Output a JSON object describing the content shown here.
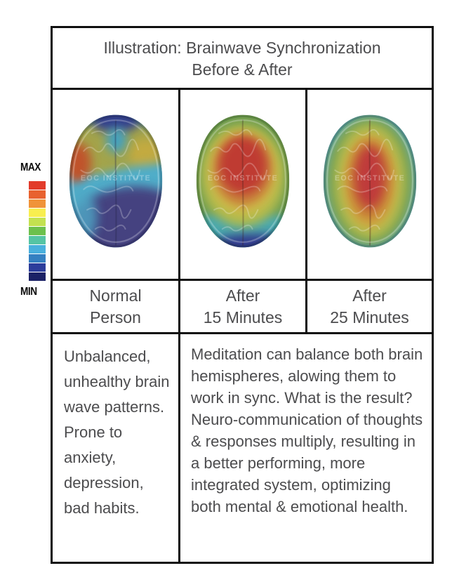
{
  "title": {
    "line1": "Illustration: Brainwave Synchronization",
    "line2": "Before & After"
  },
  "colorbar": {
    "max_label": "MAX",
    "min_label": "MIN",
    "colors": [
      "#e23b2b",
      "#e8622f",
      "#f09339",
      "#f8ee4f",
      "#c3e150",
      "#6cc04c",
      "#55c4a4",
      "#49b0dd",
      "#3480c1",
      "#2c3d9b",
      "#1b2166"
    ]
  },
  "columns": [
    {
      "label_line1": "Normal",
      "label_line2": "Person",
      "brain_alt": "scattered unsynchronized heatmap: blue rear, teal band, olive and orange patches at front"
    },
    {
      "label_line1": "After",
      "label_line2": "15 Minutes",
      "brain_alt": "concentric heatmap: red core in front half, orange-yellow-green rings, blue rear edge"
    },
    {
      "label_line1": "After",
      "label_line2": "25 Minutes",
      "brain_alt": "concentric heatmap: red midline core, orange-yellow-green rings, cyan side edges"
    }
  ],
  "descriptions": {
    "left": "Unbalanced, unhealthy brain wave patterns. Prone to anxiety, depression, bad habits.",
    "right": "Meditation can balance both brain hemispheres, alowing them to work in sync. What is the result? Neuro-communication of thoughts & responses multiply, resulting in a better performing, more integrated system, optimizing both mental & emotional health."
  },
  "watermark": "EOC INSTITUTE",
  "colors": {
    "text": "#4c4c4e",
    "border": "#0f0f0f",
    "scale_label": "#0a0a0a"
  }
}
